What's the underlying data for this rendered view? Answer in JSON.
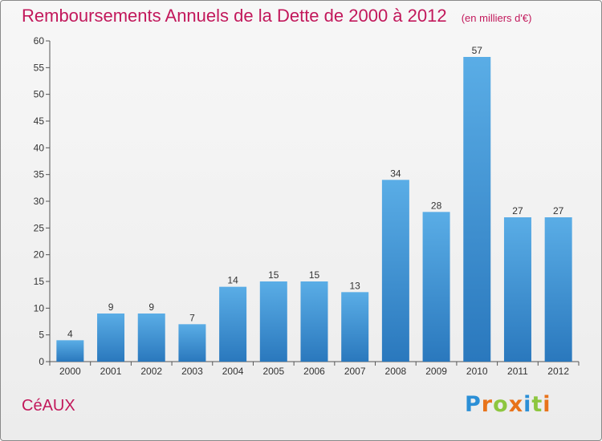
{
  "header": {
    "title": "Remboursements Annuels de la Dette de 2000 à 2012",
    "subtitle": "(en milliers d'€)"
  },
  "footer": {
    "commune": "CéAUX",
    "logo_letters": [
      "P",
      "r",
      "o",
      "x",
      "i",
      "t",
      "i"
    ],
    "logo_colors": [
      "#2b8fd6",
      "#e8731a",
      "#8dc63f",
      "#e8731a",
      "#2b8fd6",
      "#8dc63f",
      "#e8731a"
    ]
  },
  "chart_data": {
    "type": "bar",
    "title": "Remboursements Annuels de la Dette de 2000 à 2012",
    "subtitle": "(en milliers d'€)",
    "categories": [
      "2000",
      "2001",
      "2002",
      "2003",
      "2004",
      "2005",
      "2006",
      "2007",
      "2008",
      "2009",
      "2010",
      "2011",
      "2012"
    ],
    "values": [
      4,
      9,
      9,
      7,
      14,
      15,
      15,
      13,
      34,
      28,
      57,
      27,
      27
    ],
    "ylim": [
      0,
      60
    ],
    "yticks": [
      0,
      5,
      10,
      15,
      20,
      25,
      30,
      35,
      40,
      45,
      50,
      55,
      60
    ],
    "grid": false,
    "colors": {
      "bar_top": "#5aade6",
      "bar_bottom": "#2a78bd",
      "axis": "#555555",
      "title": "#c2185b"
    }
  }
}
